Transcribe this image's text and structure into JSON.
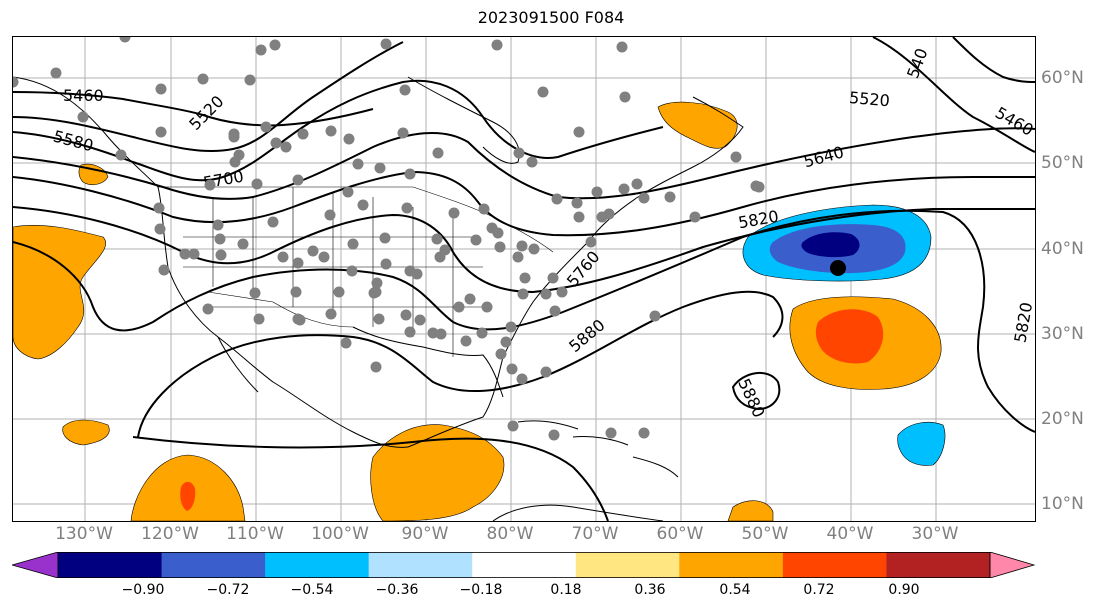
{
  "title": "2023091500 F084",
  "lon_labels": [
    "130°W",
    "120°W",
    "110°W",
    "100°W",
    "90°W",
    "80°W",
    "70°W",
    "60°W",
    "50°W",
    "40°W",
    "30°W"
  ],
  "lat_labels": [
    "60°N",
    "50°N",
    "40°N",
    "30°N",
    "20°N",
    "10°N"
  ],
  "contour_labels": [
    "5460",
    "5520",
    "5580",
    "5700",
    "5760",
    "5820",
    "5880",
    "5880",
    "5520",
    "5640",
    "5460",
    "540",
    "5820"
  ],
  "colorbar": {
    "ticks": [
      "−0.90",
      "−0.72",
      "−0.54",
      "−0.36",
      "−0.18",
      "0.18",
      "0.36",
      "0.54",
      "0.72",
      "0.90"
    ],
    "colors": [
      "#9932CC",
      "#000080",
      "#3A5FCD",
      "#00BFFF",
      "#B0E2FF",
      "#FFFFFF",
      "#FFE680",
      "#FFA500",
      "#FF4500",
      "#B22222",
      "#FF88AA"
    ]
  },
  "anomaly_colors": {
    "positive": "#FFA500",
    "strong_positive": "#FF4500",
    "negative_light": "#00BFFF",
    "negative_mid": "#3A5FCD",
    "negative_strong": "#000080"
  },
  "station_color": "#808080"
}
